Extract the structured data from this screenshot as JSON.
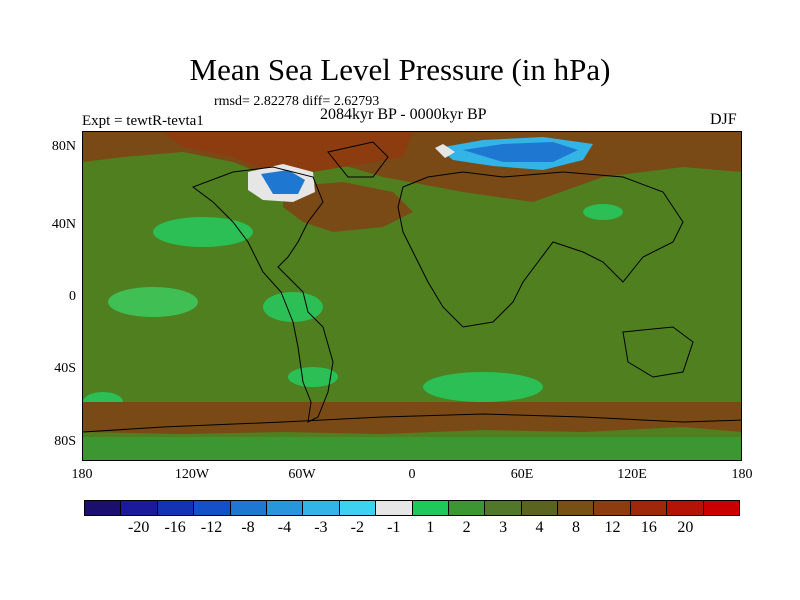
{
  "title": "Mean Sea Level Pressure (in hPa)",
  "stats": "rmsd= 2.82278 diff= 2.62793",
  "experiment": "Expt = tewtR-tevta1",
  "period": "2084kyr BP - 0000kyr BP",
  "season": "DJF",
  "lat_labels": [
    "80N",
    "40N",
    "0",
    "40S",
    "80S"
  ],
  "lon_labels": [
    "180",
    "120W",
    "60W",
    "0",
    "60E",
    "120E",
    "180"
  ],
  "colorbar": {
    "colors": [
      "#1a0f6e",
      "#1a1a9a",
      "#1432b4",
      "#1450c8",
      "#1e78d2",
      "#2896dc",
      "#32b4e6",
      "#3cd2f0",
      "#e6e6e6",
      "#1ec85a",
      "#3c9632",
      "#507828",
      "#5a641e",
      "#785014",
      "#8c3c0f",
      "#a0280a",
      "#b41405",
      "#c80000"
    ],
    "labels": [
      "-20",
      "-16",
      "-12",
      "-8",
      "-4",
      "-3",
      "-2",
      "-1",
      "1",
      "2",
      "3",
      "4",
      "8",
      "12",
      "16",
      "20"
    ]
  },
  "map_colors": {
    "base": "#4f7f1f",
    "bright_green": "#2bbf55",
    "light_green": "#3c9632",
    "brown": "#7a4a16",
    "dark_brown": "#8c3c0f",
    "red_brown": "#a0280a",
    "blue": "#1e78d2",
    "cyan": "#3cd2f0",
    "white": "#e6e6e6"
  }
}
